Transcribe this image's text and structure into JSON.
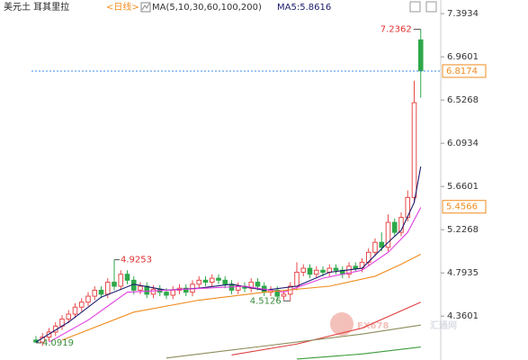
{
  "chart_data": {
    "type": "candlestick",
    "title": "美元土 耳其里拉",
    "period": "<日线>",
    "ma_label": "MA(5,10,30,60,100,200)",
    "ma5_label": "MA5:5.8616",
    "watermark": [
      "FX678",
      "汇通网"
    ],
    "up_color": "#e84a4a",
    "down_color": "#2ea84a",
    "open": [
      4.12,
      4.1,
      4.15,
      4.2,
      4.26,
      4.33,
      4.38,
      4.45,
      4.5,
      4.56,
      4.62,
      4.58,
      4.7,
      4.66,
      4.78,
      4.72,
      4.62,
      4.66,
      4.58,
      4.63,
      4.6,
      4.57,
      4.62,
      4.64,
      4.6,
      4.68,
      4.72,
      4.7,
      4.74,
      4.72,
      4.68,
      4.62,
      4.66,
      4.64,
      4.7,
      4.66,
      4.6,
      4.62,
      4.56,
      4.58,
      4.66,
      4.8,
      4.84,
      4.78,
      4.82,
      4.8,
      4.84,
      4.82,
      4.78,
      4.86,
      4.84,
      4.9,
      5.0,
      5.1,
      5.05,
      5.3,
      5.2,
      5.35,
      5.55,
      7.13
    ],
    "high": [
      4.16,
      4.19,
      4.24,
      4.3,
      4.37,
      4.42,
      4.49,
      4.54,
      4.6,
      4.66,
      4.66,
      4.74,
      4.9253,
      4.82,
      4.82,
      4.76,
      4.7,
      4.7,
      4.67,
      4.67,
      4.64,
      4.66,
      4.68,
      4.68,
      4.72,
      4.76,
      4.76,
      4.78,
      4.78,
      4.76,
      4.72,
      4.7,
      4.7,
      4.74,
      4.74,
      4.7,
      4.66,
      4.66,
      4.62,
      4.7,
      4.9,
      4.88,
      4.88,
      4.86,
      4.86,
      4.88,
      4.88,
      4.86,
      4.9,
      4.9,
      4.94,
      5.04,
      5.14,
      5.2,
      5.38,
      5.34,
      5.4,
      5.62,
      6.72,
      7.2362
    ],
    "low": [
      4.0919,
      4.06,
      4.11,
      4.16,
      4.22,
      4.29,
      4.34,
      4.41,
      4.46,
      4.52,
      4.54,
      4.54,
      4.62,
      4.62,
      4.68,
      4.58,
      4.58,
      4.54,
      4.54,
      4.56,
      4.53,
      4.53,
      4.58,
      4.56,
      4.56,
      4.64,
      4.66,
      4.66,
      4.68,
      4.64,
      4.58,
      4.58,
      4.6,
      4.6,
      4.62,
      4.56,
      4.56,
      4.52,
      4.52,
      4.5126,
      4.62,
      4.76,
      4.74,
      4.74,
      4.76,
      4.76,
      4.78,
      4.74,
      4.74,
      4.8,
      4.8,
      4.86,
      4.96,
      5.01,
      5.01,
      5.16,
      5.16,
      5.31,
      5.5,
      6.55
    ],
    "close": [
      4.1,
      4.15,
      4.2,
      4.26,
      4.33,
      4.38,
      4.45,
      4.5,
      4.56,
      4.62,
      4.58,
      4.7,
      4.66,
      4.78,
      4.72,
      4.62,
      4.66,
      4.58,
      4.63,
      4.6,
      4.57,
      4.62,
      4.64,
      4.6,
      4.68,
      4.72,
      4.7,
      4.74,
      4.72,
      4.68,
      4.62,
      4.66,
      4.64,
      4.7,
      4.66,
      4.6,
      4.62,
      4.56,
      4.58,
      4.66,
      4.8,
      4.84,
      4.78,
      4.82,
      4.8,
      4.84,
      4.82,
      4.78,
      4.86,
      4.84,
      4.9,
      5.0,
      5.1,
      5.05,
      5.3,
      5.2,
      5.35,
      5.55,
      6.5,
      6.82
    ],
    "ma_lines": [
      {
        "color": "#1a1a6e",
        "x": [
          0,
          5,
          10,
          15,
          20,
          25,
          30,
          35,
          40,
          45,
          50,
          54,
          56,
          58,
          59
        ],
        "values": [
          4.1,
          4.3,
          4.55,
          4.68,
          4.62,
          4.64,
          4.68,
          4.62,
          4.66,
          4.8,
          4.84,
          5.1,
          5.22,
          5.5,
          5.86
        ]
      },
      {
        "color": "#e03ce0",
        "x": [
          2,
          8,
          14,
          20,
          26,
          32,
          38,
          44,
          50,
          54,
          57,
          59
        ],
        "values": [
          4.1,
          4.32,
          4.6,
          4.62,
          4.64,
          4.66,
          4.6,
          4.74,
          4.82,
          5.0,
          5.2,
          5.45
        ]
      },
      {
        "color": "#f08c1e",
        "x": [
          4,
          15,
          25,
          35,
          45,
          52,
          56,
          59
        ],
        "values": [
          4.12,
          4.4,
          4.52,
          4.6,
          4.66,
          4.76,
          4.88,
          4.98
        ]
      },
      {
        "color": "#e04040",
        "x": [
          30,
          40,
          50,
          59
        ],
        "values": [
          3.97,
          4.08,
          4.24,
          4.5
        ]
      },
      {
        "color": "#8c8c5a",
        "x": [
          20,
          35,
          50,
          59
        ],
        "values": [
          3.94,
          4.06,
          4.18,
          4.27
        ]
      },
      {
        "color": "#3c9c3c",
        "x": [
          40,
          50,
          59
        ],
        "values": [
          3.93,
          3.98,
          4.05
        ]
      }
    ],
    "annotations": [
      {
        "index": 59,
        "value": 7.2362,
        "color": "#e03030"
      },
      {
        "index": 12,
        "value": 4.9253,
        "color": "#e03030"
      },
      {
        "index": 39,
        "value": 4.5126,
        "color": "#3c8c3c"
      },
      {
        "index": 0,
        "value": 4.0919,
        "color": "#3c8c3c"
      }
    ],
    "price_markers": [
      {
        "value": 6.8174,
        "color": "#f08c1e",
        "line_color": "#3c8ce0"
      },
      {
        "value": 5.4566,
        "color": "#f08c1e"
      }
    ],
    "ylim": [
      3.92,
      7.53
    ],
    "yticks": [
      4.3601,
      4.7935,
      5.2268,
      5.6601,
      6.0934,
      6.5268,
      6.9601,
      7.3934
    ]
  }
}
